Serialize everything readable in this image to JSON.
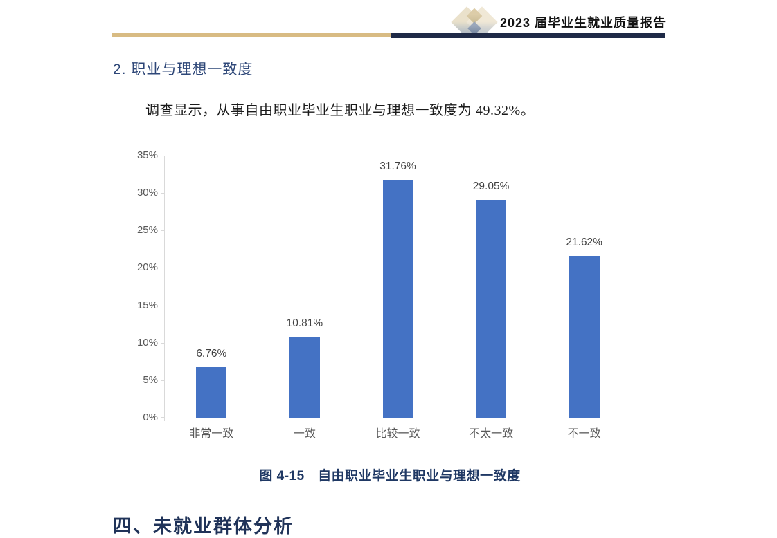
{
  "header": {
    "title": "2023 届毕业生就业质量报告",
    "logo_icon": "overlapping-diamonds-logo",
    "gold_line_color": "#D8BB83",
    "navy_line_color": "#1F2A47"
  },
  "section": {
    "heading": "2. 职业与理想一致度",
    "heading_color": "#2E4778",
    "paragraph": "调查显示，从事自由职业毕业生职业与理想一致度为 49.32%。"
  },
  "figure": {
    "caption": "图 4-15　自由职业毕业生职业与理想一致度",
    "caption_color": "#1F3864"
  },
  "next_section": {
    "heading": "四、未就业群体分析",
    "heading_color": "#203359"
  },
  "chart_data": {
    "type": "bar",
    "title": "",
    "xlabel": "",
    "ylabel": "",
    "categories": [
      "非常一致",
      "一致",
      "比较一致",
      "不太一致",
      "不一致"
    ],
    "values": [
      6.76,
      10.81,
      31.76,
      29.05,
      21.62
    ],
    "data_labels": [
      "6.76%",
      "10.81%",
      "31.76%",
      "29.05%",
      "21.62%"
    ],
    "ylim": [
      0,
      35
    ],
    "ytick_step": 5,
    "yticks": [
      "0%",
      "5%",
      "10%",
      "15%",
      "20%",
      "25%",
      "30%",
      "35%"
    ],
    "bar_color": "#4472C4",
    "axis_color": "#D9D9D9",
    "tick_label_color": "#595959",
    "data_label_color": "#404040",
    "grid": false,
    "legend": "none"
  }
}
